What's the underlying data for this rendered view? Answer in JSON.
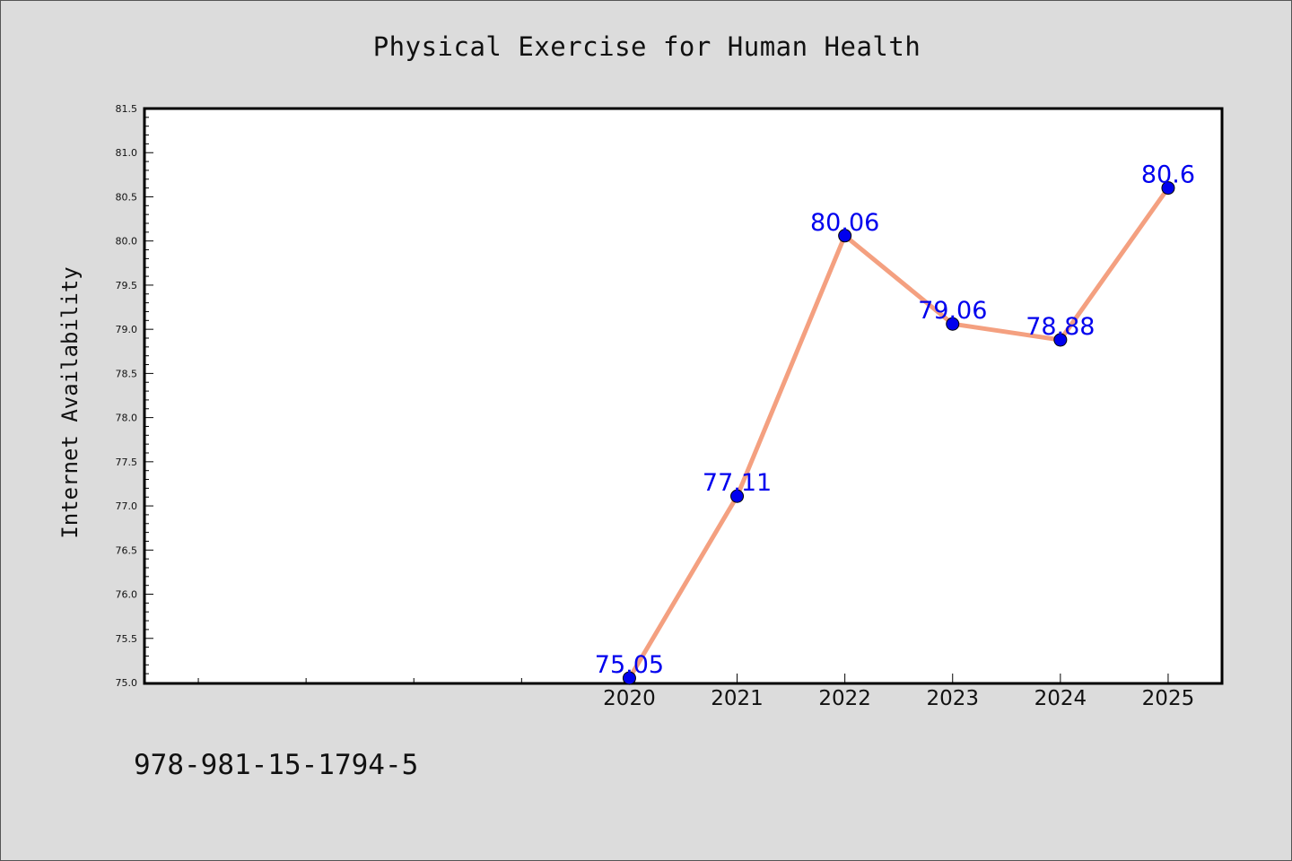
{
  "chart_data": {
    "type": "line",
    "title": "Physical Exercise for Human Health",
    "xlabel": "",
    "ylabel": "Internet Availability",
    "x": [
      "2020",
      "2021",
      "2022",
      "2023",
      "2024",
      "2025"
    ],
    "series": [
      {
        "values": [
          75.05,
          77.11,
          80.06,
          79.06,
          78.88,
          80.6
        ],
        "data_labels": [
          "75.05",
          "77.11",
          "80.06",
          "79.06",
          "78.88",
          "80.6"
        ]
      }
    ],
    "ylim": [
      75.0,
      81.5
    ],
    "yticks": [
      "75.0",
      "75.5",
      "76.0",
      "76.5",
      "77.0",
      "77.5",
      "78.0",
      "78.5",
      "79.0",
      "79.5",
      "80.0",
      "80.5",
      "81.0",
      "81.5"
    ],
    "xlim": [
      2015.5,
      2025.5
    ],
    "grid": false,
    "legend": "none",
    "colors": {
      "line": "#f4a080",
      "marker": "#0000ee",
      "data_label": "#0000ee",
      "background": "#dcdcdc",
      "plot_background": "#ffffff"
    }
  },
  "footer": {
    "isbn": "978-981-15-1794-5"
  }
}
